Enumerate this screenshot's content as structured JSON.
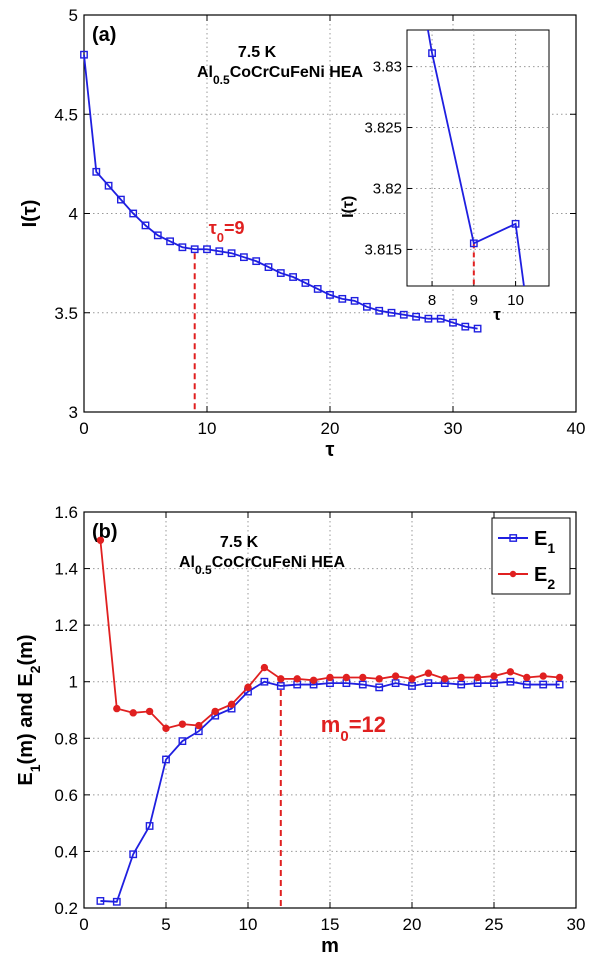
{
  "chart_data": [
    {
      "type": "line",
      "panel_label": "(a)",
      "annotation_lines": [
        "7.5 K",
        "Al",
        "0.5",
        "CoCrCuFeNi HEA"
      ],
      "xlabel": "τ",
      "ylabel": "I(τ)",
      "xlim": [
        0,
        40
      ],
      "ylim": [
        3,
        5
      ],
      "xticks": [
        0,
        10,
        20,
        30,
        40
      ],
      "yticks": [
        3,
        3.5,
        4,
        4.5,
        5
      ],
      "xtick_labels": [
        "0",
        "10",
        "20",
        "30",
        "40"
      ],
      "ytick_labels": [
        "3",
        "3.5",
        "4",
        "4.5",
        "5"
      ],
      "grid": true,
      "series": [
        {
          "color": "#1f1fe0",
          "marker": "square",
          "x": [
            0,
            1,
            2,
            3,
            4,
            5,
            6,
            7,
            8,
            9,
            10,
            11,
            12,
            13,
            14,
            15,
            16,
            17,
            18,
            19,
            20,
            21,
            22,
            23,
            24,
            25,
            26,
            27,
            28,
            29,
            30,
            31,
            32
          ],
          "y": [
            4.8,
            4.21,
            4.14,
            4.07,
            4.0,
            3.94,
            3.89,
            3.86,
            3.83,
            3.82,
            3.82,
            3.81,
            3.8,
            3.78,
            3.76,
            3.73,
            3.7,
            3.68,
            3.65,
            3.62,
            3.59,
            3.57,
            3.56,
            3.53,
            3.51,
            3.5,
            3.49,
            3.48,
            3.47,
            3.47,
            3.45,
            3.43,
            3.42
          ]
        }
      ],
      "marker_line": {
        "x": 9,
        "label": "τ",
        "sub": "0",
        "value_text": "=9",
        "color": "#e02020"
      },
      "inset": {
        "xlabel": "τ",
        "ylabel": "I(τ)",
        "xlim": [
          7.4,
          10.8
        ],
        "ylim": [
          3.812,
          3.833
        ],
        "xticks": [
          8,
          9,
          10
        ],
        "yticks": [
          3.815,
          3.82,
          3.825,
          3.83
        ],
        "xtick_labels": [
          "8",
          "9",
          "10"
        ],
        "ytick_labels": [
          "3.815",
          "3.82",
          "3.825",
          "3.83"
        ],
        "x": [
          7.85,
          8,
          9,
          10,
          10.2
        ],
        "y": [
          3.834,
          3.8311,
          3.8155,
          3.8171,
          3.812
        ],
        "marker_x": [
          8,
          9,
          10
        ],
        "marker_line_x": 9
      }
    },
    {
      "type": "line",
      "panel_label": "(b)",
      "annotation_lines": [
        "7.5 K",
        "Al",
        "0.5",
        "CoCrCuFeNi HEA"
      ],
      "xlabel": "m",
      "ylabel": "E1(m) and E2(m)",
      "xlim": [
        0,
        30
      ],
      "ylim": [
        0.2,
        1.6
      ],
      "xticks": [
        0,
        5,
        10,
        15,
        20,
        25,
        30
      ],
      "yticks": [
        0.2,
        0.4,
        0.6,
        0.8,
        1,
        1.2,
        1.4,
        1.6
      ],
      "xtick_labels": [
        "0",
        "5",
        "10",
        "15",
        "20",
        "25",
        "30"
      ],
      "ytick_labels": [
        "0.2",
        "0.4",
        "0.6",
        "0.8",
        "1",
        "1.2",
        "1.4",
        "1.6"
      ],
      "grid": true,
      "legend_position": "top-right",
      "series": [
        {
          "name": "E1",
          "color": "#1f1fe0",
          "marker": "square",
          "x": [
            1,
            2,
            3,
            4,
            5,
            6,
            7,
            8,
            9,
            10,
            11,
            12,
            13,
            14,
            15,
            16,
            17,
            18,
            19,
            20,
            21,
            22,
            23,
            24,
            25,
            26,
            27,
            28,
            29
          ],
          "y": [
            0.225,
            0.222,
            0.39,
            0.49,
            0.725,
            0.79,
            0.825,
            0.88,
            0.905,
            0.965,
            1.0,
            0.985,
            0.99,
            0.99,
            0.995,
            0.995,
            0.99,
            0.98,
            0.995,
            0.985,
            0.995,
            0.995,
            0.99,
            0.995,
            0.995,
            1.0,
            0.99,
            0.99,
            0.99
          ]
        },
        {
          "name": "E2",
          "color": "#e02020",
          "marker": "circle",
          "x": [
            1,
            2,
            3,
            4,
            5,
            6,
            7,
            8,
            9,
            10,
            11,
            12,
            13,
            14,
            15,
            16,
            17,
            18,
            19,
            20,
            21,
            22,
            23,
            24,
            25,
            26,
            27,
            28,
            29
          ],
          "y": [
            1.5,
            0.905,
            0.89,
            0.895,
            0.835,
            0.85,
            0.845,
            0.895,
            0.92,
            0.98,
            1.05,
            1.01,
            1.01,
            1.005,
            1.015,
            1.015,
            1.015,
            1.01,
            1.02,
            1.01,
            1.03,
            1.01,
            1.015,
            1.015,
            1.02,
            1.035,
            1.015,
            1.02,
            1.015
          ]
        }
      ],
      "marker_line": {
        "x": 12,
        "label": "m",
        "sub": "0",
        "value_text": "=12",
        "color": "#e02020"
      }
    }
  ]
}
